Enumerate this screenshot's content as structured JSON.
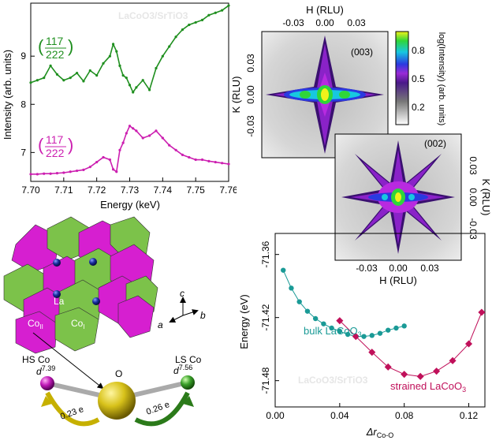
{
  "figure": {
    "panel_a": {
      "xlabel": "Energy (keV)",
      "ylabel": "Intensity (arb. units)",
      "overlay_label": "LaCoO3/SrTiO3",
      "xticks": [
        "7.70",
        "7.71",
        "7.72",
        "7.73",
        "7.74",
        "7.75",
        "7.76"
      ],
      "yticks": [
        "7",
        "8",
        "9"
      ],
      "green_label_left": "(",
      "green_label_num": "117",
      "green_label_den": "222",
      "green_label_right": ")",
      "magenta_label_left": "(",
      "magenta_label_num": "117",
      "magenta_label_den": "222",
      "magenta_label_right": ")",
      "colors": {
        "green": "#1f8f1f",
        "magenta": "#cc1fb0"
      }
    },
    "panel_b": {
      "top_map_label": "(003)",
      "bottom_map_label": "(002)",
      "top_xlabel": "H (RLU)",
      "bottom_xlabel": "H (RLU)",
      "top_ylabel": "K (RLU)",
      "bottom_ylabel": "K (RLU)",
      "top_xticks": [
        "-0.03",
        "0.00",
        "0.03"
      ],
      "top_yticks": [
        "0.03",
        "0.00",
        "-0.03"
      ],
      "bottom_xticks": [
        "-0.03",
        "0.00",
        "0.03"
      ],
      "bottom_yticks": [
        "0.03",
        "0.00",
        "-0.03"
      ],
      "colorbar_label": "log(Intensity) (arb. units)",
      "colorbar_ticks": [
        "0.8",
        "0.5",
        "0.2"
      ]
    },
    "panel_c": {
      "atom_label_la": "La",
      "atom_label_co2": "Co",
      "atom_label_co2_sub": "II",
      "atom_label_co1": "Co",
      "atom_label_co1_sub": "I",
      "axis_a": "a",
      "axis_b": "b",
      "axis_c": "c",
      "hs_label": "HS Co",
      "ls_label": "LS Co",
      "o_label": "O",
      "d_left": "d",
      "d_left_sup": "7.39",
      "d_right": "d",
      "d_right_sup": "7.56",
      "transfer_left": "0.23 e",
      "transfer_right": "0.26 e",
      "colors": {
        "octa_green": "#7cc24a",
        "octa_magenta": "#d61fd0",
        "la_blue": "#1a2fa0",
        "o_gold": "#d8c21a"
      }
    },
    "panel_d": {
      "xlabel": "Δr",
      "xlabel_sub": "Co-O",
      "ylabel": "Energy (eV)",
      "overlay_label": "LaCoO3/SrTiO3",
      "bulk_label": "bulk LaCoO",
      "bulk_sub": "3",
      "strained_label": "strained LaCoO",
      "strained_sub": "3",
      "xticks": [
        "0.00",
        "0.04",
        "0.08",
        "0.12"
      ],
      "yticks": [
        "-71.36",
        "-71.42",
        "-71.48"
      ],
      "colors": {
        "bulk": "#1a9a96",
        "strained": "#c0105a"
      }
    }
  },
  "chart_data": [
    {
      "type": "line",
      "xlabel": "Energy (keV)",
      "ylabel": "Intensity (arb. units)",
      "xlim": [
        7.7,
        7.76
      ],
      "ylim": [
        6.4,
        10.1
      ],
      "series": [
        {
          "name": "(117/222) green",
          "x": [
            7.7,
            7.702,
            7.704,
            7.706,
            7.708,
            7.71,
            7.712,
            7.714,
            7.716,
            7.718,
            7.72,
            7.722,
            7.724,
            7.725,
            7.726,
            7.727,
            7.728,
            7.729,
            7.73,
            7.731,
            7.732,
            7.734,
            7.736,
            7.738,
            7.74,
            7.742,
            7.744,
            7.746,
            7.748,
            7.75,
            7.752,
            7.754,
            7.756,
            7.758,
            7.76
          ],
          "y": [
            8.45,
            8.5,
            8.55,
            8.8,
            8.62,
            8.5,
            8.55,
            8.65,
            8.48,
            8.7,
            8.6,
            8.85,
            9.0,
            9.25,
            9.1,
            8.8,
            8.6,
            8.55,
            8.4,
            8.25,
            8.35,
            8.5,
            8.3,
            8.75,
            9.0,
            9.2,
            9.4,
            9.55,
            9.65,
            9.7,
            9.75,
            9.85,
            9.9,
            9.95,
            10.05
          ]
        },
        {
          "name": "(117/222) magenta",
          "x": [
            7.7,
            7.702,
            7.704,
            7.706,
            7.708,
            7.71,
            7.712,
            7.714,
            7.716,
            7.718,
            7.72,
            7.722,
            7.724,
            7.725,
            7.726,
            7.727,
            7.728,
            7.729,
            7.73,
            7.731,
            7.732,
            7.734,
            7.736,
            7.738,
            7.74,
            7.742,
            7.744,
            7.746,
            7.748,
            7.75,
            7.752,
            7.754,
            7.756,
            7.758,
            7.76
          ],
          "y": [
            6.55,
            6.55,
            6.56,
            6.56,
            6.57,
            6.58,
            6.6,
            6.62,
            6.64,
            6.7,
            6.8,
            6.9,
            6.85,
            6.65,
            6.6,
            7.05,
            7.2,
            7.4,
            7.55,
            7.5,
            7.45,
            7.3,
            7.35,
            7.45,
            7.3,
            7.15,
            7.05,
            6.95,
            6.9,
            6.85,
            6.85,
            6.82,
            6.8,
            6.78,
            6.76
          ]
        }
      ]
    },
    {
      "type": "line",
      "xlabel": "Δr Co-O",
      "ylabel": "Energy (eV)",
      "xlim": [
        0.0,
        0.13
      ],
      "ylim": [
        -71.505,
        -71.34
      ],
      "series": [
        {
          "name": "bulk LaCoO3",
          "x": [
            0.005,
            0.01,
            0.015,
            0.02,
            0.025,
            0.03,
            0.035,
            0.04,
            0.045,
            0.05,
            0.055,
            0.06,
            0.065,
            0.07,
            0.075,
            0.08
          ],
          "y": [
            -71.375,
            -71.392,
            -71.405,
            -71.414,
            -71.421,
            -71.426,
            -71.43,
            -71.433,
            -71.436,
            -71.438,
            -71.438,
            -71.437,
            -71.435,
            -71.432,
            -71.43,
            -71.428
          ]
        },
        {
          "name": "strained LaCoO3",
          "x": [
            0.04,
            0.05,
            0.06,
            0.07,
            0.08,
            0.09,
            0.1,
            0.11,
            0.12,
            0.128
          ],
          "y": [
            -71.423,
            -71.438,
            -71.453,
            -71.467,
            -71.474,
            -71.476,
            -71.471,
            -71.461,
            -71.445,
            -71.415
          ]
        }
      ]
    }
  ]
}
